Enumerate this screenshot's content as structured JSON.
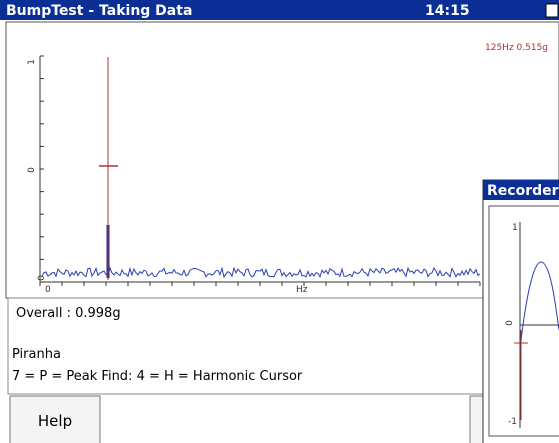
{
  "title_bar": {
    "title": "BumpTest - Taking Data",
    "time": "14:15"
  },
  "spectrum": {
    "cursor_readout": "125Hz 0.515g",
    "y_labels": [
      "1",
      "0",
      "0"
    ],
    "x_labels": [
      "0",
      "Hz"
    ]
  },
  "info": {
    "overall": "Overall : 0.998g",
    "name": "Piranha",
    "hint": "7 = P = Peak Find: 4 = H = Harmonic Cursor"
  },
  "buttons": {
    "help": "Help"
  },
  "recorder": {
    "title": "Recorder",
    "y_labels": [
      "1",
      "0",
      "-1"
    ]
  }
}
